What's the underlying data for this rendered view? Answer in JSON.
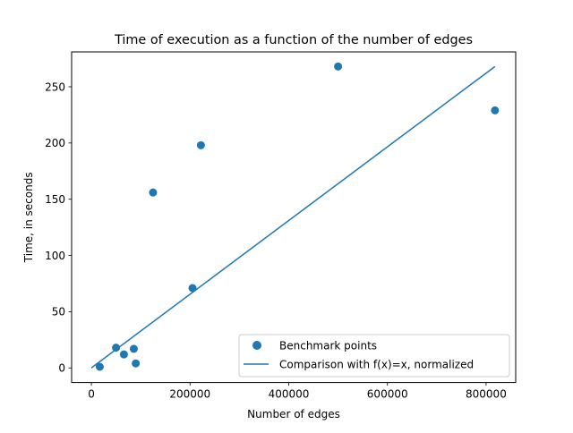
{
  "chart_data": {
    "type": "scatter",
    "title": "Time of execution as a function of the number of edges",
    "xlabel": "Number of edges",
    "ylabel": "Time, in seconds",
    "xlim": [
      -40000,
      860000
    ],
    "ylim": [
      -13,
      281
    ],
    "x_ticks": [
      0,
      200000,
      400000,
      600000,
      800000
    ],
    "y_ticks": [
      0,
      50,
      100,
      150,
      200,
      250
    ],
    "grid": false,
    "legend_position": "lower right",
    "colors": {
      "series": "#1f77b4"
    },
    "series": [
      {
        "name": "Benchmark points",
        "kind": "scatter",
        "points": [
          {
            "x": 17000,
            "y": 1
          },
          {
            "x": 50000,
            "y": 18
          },
          {
            "x": 66000,
            "y": 12
          },
          {
            "x": 86000,
            "y": 17
          },
          {
            "x": 90000,
            "y": 4
          },
          {
            "x": 125000,
            "y": 156
          },
          {
            "x": 205000,
            "y": 71
          },
          {
            "x": 222000,
            "y": 198
          },
          {
            "x": 500000,
            "y": 268
          },
          {
            "x": 818000,
            "y": 229
          }
        ]
      },
      {
        "name": "Comparison with f(x)=x, normalized",
        "kind": "line",
        "points": [
          {
            "x": 0,
            "y": 0
          },
          {
            "x": 818000,
            "y": 268
          }
        ]
      }
    ]
  }
}
